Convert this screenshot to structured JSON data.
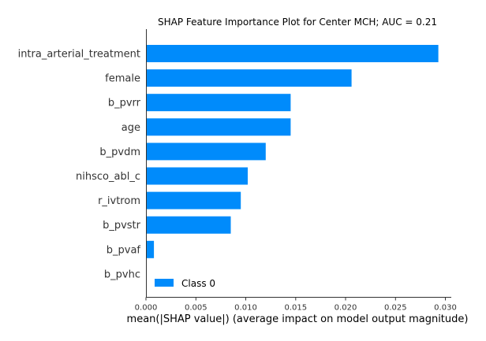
{
  "chart_data": {
    "type": "bar",
    "orientation": "horizontal",
    "title": "SHAP Feature Importance Plot for Center MCH; AUC = 0.21",
    "xlabel": "mean(|SHAP value|) (average impact on model output magnitude)",
    "ylabel": "",
    "categories": [
      "intra_arterial_treatment",
      "female",
      "b_pvrr",
      "age",
      "b_pvdm",
      "nihsco_abl_c",
      "r_ivtrom",
      "b_pvstr",
      "b_pvaf",
      "b_pvhc"
    ],
    "series": [
      {
        "name": "Class 0",
        "color": "#008bfb",
        "values": [
          0.0293,
          0.0206,
          0.0145,
          0.0145,
          0.012,
          0.0102,
          0.0095,
          0.0085,
          0.0008,
          0.0
        ]
      }
    ],
    "xlim": [
      0.0,
      0.0302
    ],
    "xticks": [
      0.0,
      0.005,
      0.01,
      0.015,
      0.02,
      0.025,
      0.03
    ],
    "xtick_labels": [
      "0.000",
      "0.005",
      "0.010",
      "0.015",
      "0.020",
      "0.025",
      "0.030"
    ],
    "grid": false,
    "legend": {
      "placement": "lower-left",
      "entries": [
        "Class 0"
      ]
    }
  }
}
